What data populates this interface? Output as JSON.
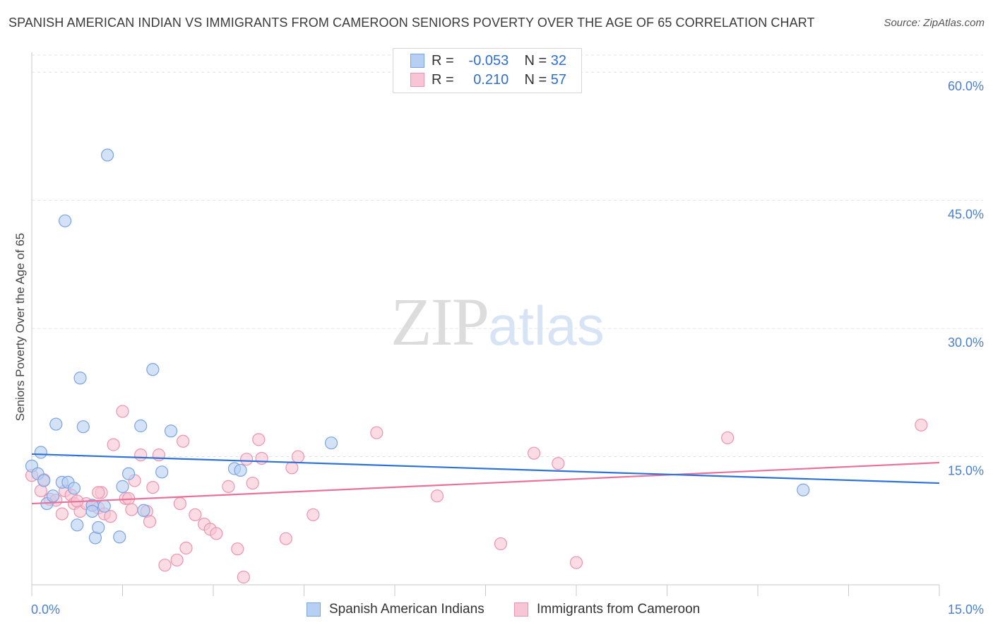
{
  "header": {
    "title": "SPANISH AMERICAN INDIAN VS IMMIGRANTS FROM CAMEROON SENIORS POVERTY OVER THE AGE OF 65 CORRELATION CHART",
    "source": "Source: ZipAtlas.com"
  },
  "watermark": {
    "zip": "ZIP",
    "atlas": "atlas"
  },
  "legend": {
    "rows": [
      {
        "r_label": "R =",
        "r_value": "-0.053",
        "n_label": "N =",
        "n_value": "32"
      },
      {
        "r_label": "R =",
        "r_value": "0.210",
        "n_label": "N =",
        "n_value": "57"
      }
    ]
  },
  "chart_data": {
    "type": "scatter",
    "title": "SPANISH AMERICAN INDIAN VS IMMIGRANTS FROM CAMEROON SENIORS POVERTY OVER THE AGE OF 65 CORRELATION CHART",
    "xlabel": "",
    "ylabel": "Seniors Poverty Over the Age of 65",
    "xlim": [
      0,
      15
    ],
    "ylim": [
      0,
      62
    ],
    "x_tick_labels": [
      "0.0%",
      "15.0%"
    ],
    "y_ticks": [
      15,
      30,
      45,
      60
    ],
    "y_tick_labels": [
      "15.0%",
      "30.0%",
      "45.0%",
      "60.0%"
    ],
    "grid": true,
    "colors": {
      "blue_fill": "#b7cff2",
      "blue_stroke": "#7aa4e0",
      "blue_line": "#2f72d6",
      "pink_fill": "#f8c5d4",
      "pink_stroke": "#ec93b0",
      "pink_line": "#e8729a"
    },
    "series": [
      {
        "name": "Spanish American Indians",
        "r": -0.053,
        "n": 32,
        "trend": {
          "x": [
            0,
            15
          ],
          "y": [
            15.3,
            11.9
          ]
        },
        "points": [
          [
            0.0,
            13.9
          ],
          [
            0.1,
            13.0
          ],
          [
            0.15,
            15.5
          ],
          [
            0.2,
            12.2
          ],
          [
            0.25,
            9.5
          ],
          [
            0.35,
            10.4
          ],
          [
            0.4,
            18.8
          ],
          [
            0.5,
            12.0
          ],
          [
            0.6,
            12.0
          ],
          [
            0.7,
            11.3
          ],
          [
            0.75,
            7.0
          ],
          [
            0.8,
            24.2
          ],
          [
            0.85,
            18.5
          ],
          [
            1.0,
            9.3
          ],
          [
            1.05,
            5.5
          ],
          [
            1.1,
            6.7
          ],
          [
            1.2,
            9.2
          ],
          [
            1.25,
            50.3
          ],
          [
            1.45,
            5.6
          ],
          [
            1.5,
            11.5
          ],
          [
            1.6,
            13.0
          ],
          [
            1.8,
            18.6
          ],
          [
            1.85,
            8.7
          ],
          [
            2.0,
            25.2
          ],
          [
            2.15,
            13.2
          ],
          [
            2.3,
            18.0
          ],
          [
            3.35,
            13.6
          ],
          [
            3.45,
            13.4
          ],
          [
            4.95,
            16.6
          ],
          [
            12.75,
            11.1
          ],
          [
            0.55,
            42.6
          ],
          [
            1.0,
            8.6
          ]
        ]
      },
      {
        "name": "Immigrants from Cameroon",
        "r": 0.21,
        "n": 57,
        "trend": {
          "x": [
            0,
            15
          ],
          "y": [
            9.5,
            14.3
          ]
        },
        "points": [
          [
            0.0,
            12.8
          ],
          [
            0.15,
            11.0
          ],
          [
            0.2,
            12.3
          ],
          [
            0.3,
            10.0
          ],
          [
            0.4,
            9.9
          ],
          [
            0.5,
            8.3
          ],
          [
            0.55,
            11.0
          ],
          [
            0.65,
            10.5
          ],
          [
            0.7,
            9.5
          ],
          [
            0.8,
            8.6
          ],
          [
            0.9,
            9.5
          ],
          [
            1.0,
            9.3
          ],
          [
            1.1,
            9.0
          ],
          [
            1.15,
            10.8
          ],
          [
            1.2,
            8.3
          ],
          [
            1.3,
            8.0
          ],
          [
            1.35,
            16.4
          ],
          [
            1.5,
            20.3
          ],
          [
            1.55,
            10.1
          ],
          [
            1.6,
            10.1
          ],
          [
            1.65,
            8.8
          ],
          [
            1.7,
            12.2
          ],
          [
            1.8,
            15.2
          ],
          [
            1.9,
            8.6
          ],
          [
            1.95,
            7.4
          ],
          [
            2.0,
            11.4
          ],
          [
            2.1,
            15.2
          ],
          [
            2.2,
            2.3
          ],
          [
            2.4,
            2.9
          ],
          [
            2.45,
            9.5
          ],
          [
            2.5,
            16.8
          ],
          [
            2.55,
            4.3
          ],
          [
            2.7,
            8.2
          ],
          [
            2.85,
            7.1
          ],
          [
            2.95,
            6.5
          ],
          [
            3.05,
            6.0
          ],
          [
            3.25,
            11.5
          ],
          [
            3.4,
            4.2
          ],
          [
            3.5,
            0.9
          ],
          [
            3.55,
            14.7
          ],
          [
            3.65,
            11.9
          ],
          [
            3.75,
            17.0
          ],
          [
            3.8,
            14.8
          ],
          [
            4.2,
            5.4
          ],
          [
            4.3,
            13.7
          ],
          [
            4.4,
            15.0
          ],
          [
            4.65,
            8.2
          ],
          [
            5.7,
            17.8
          ],
          [
            6.7,
            10.4
          ],
          [
            7.75,
            4.8
          ],
          [
            8.3,
            15.4
          ],
          [
            8.7,
            14.2
          ],
          [
            9.0,
            2.6
          ],
          [
            11.5,
            17.2
          ],
          [
            14.7,
            18.7
          ],
          [
            1.1,
            10.8
          ],
          [
            0.75,
            9.8
          ]
        ]
      }
    ]
  }
}
